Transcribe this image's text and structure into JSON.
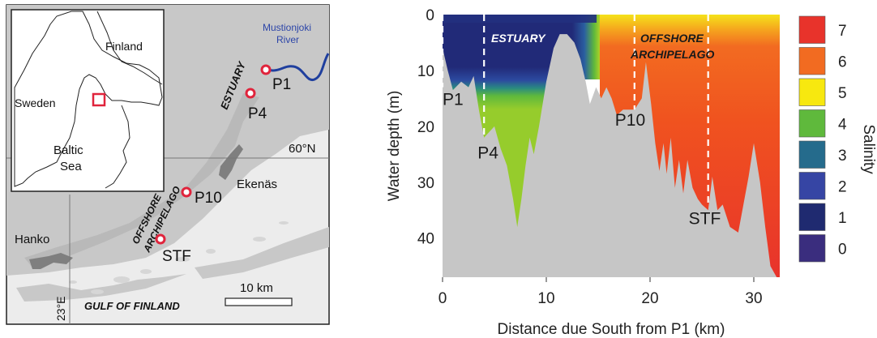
{
  "map": {
    "places": {
      "mustionjoki": "Mustionjoki",
      "river": "River",
      "estuary": "ESTUARY",
      "ekenas": "Ekenäs",
      "hanko": "Hanko",
      "offshore": "OFFSHORE",
      "archipelago": "ARCHIPELAGO",
      "gulf": "GULF OF  FINLAND"
    },
    "sites": [
      "P1",
      "P4",
      "P10",
      "STF"
    ],
    "lat_label": "60°N",
    "lon_label": "23°E",
    "scale_label": "10 km",
    "inset": {
      "finland": "Finland",
      "sweden": "Sweden",
      "baltic": "Baltic",
      "sea": "Sea"
    },
    "colors": {
      "land": "#c8c8c8",
      "water": "#ececec",
      "river": "#1f3f9e",
      "site": "#e0243c"
    }
  },
  "chart_data": {
    "type": "heatmap",
    "title": "",
    "xlabel": "Distance due South from P1 (km)",
    "ylabel": "Water depth (m)",
    "xlim": [
      0,
      32.5
    ],
    "ylim": [
      0,
      47
    ],
    "xticks": [
      "0",
      "10",
      "20",
      "30"
    ],
    "yticks": [
      "0",
      "10",
      "20",
      "30",
      "40"
    ],
    "zones": [
      "ESTUARY",
      "OFFSHORE",
      "ARCHIPELAGO"
    ],
    "zone_boundaries_km": [
      0,
      4,
      18.5,
      25.6
    ],
    "sites": [
      {
        "name": "P1",
        "x": 0,
        "depth": 13
      },
      {
        "name": "P4",
        "x": 4,
        "depth": 22
      },
      {
        "name": "P10",
        "x": 18.5,
        "depth": 17
      },
      {
        "name": "STF",
        "x": 25.6,
        "depth": 34
      }
    ],
    "bathymetry": [
      [
        0,
        6
      ],
      [
        0.5,
        10
      ],
      [
        1,
        13.5
      ],
      [
        1.8,
        12
      ],
      [
        2.5,
        13
      ],
      [
        3,
        11
      ],
      [
        3.5,
        17
      ],
      [
        4,
        22
      ],
      [
        5,
        20
      ],
      [
        5.6,
        24
      ],
      [
        6.2,
        27
      ],
      [
        6.8,
        33
      ],
      [
        7.2,
        38
      ],
      [
        7.6,
        33
      ],
      [
        8,
        27
      ],
      [
        8.4,
        22
      ],
      [
        8.8,
        25
      ],
      [
        9.3,
        20
      ],
      [
        10,
        12
      ],
      [
        10.7,
        6
      ],
      [
        11.3,
        3.5
      ],
      [
        12,
        3.5
      ],
      [
        12.7,
        5
      ],
      [
        13.3,
        8
      ],
      [
        13.8,
        12
      ],
      [
        14.2,
        16
      ],
      [
        14.8,
        13
      ],
      [
        15.3,
        15
      ],
      [
        15.8,
        13
      ],
      [
        16.3,
        15
      ],
      [
        16.8,
        18
      ],
      [
        17.4,
        17
      ],
      [
        18.5,
        17
      ],
      [
        19.2,
        15
      ],
      [
        19.6,
        8.5
      ],
      [
        20.1,
        16
      ],
      [
        20.5,
        23
      ],
      [
        20.9,
        28
      ],
      [
        21.3,
        23
      ],
      [
        21.6,
        28.5
      ],
      [
        22,
        22
      ],
      [
        22.4,
        31
      ],
      [
        22.8,
        26
      ],
      [
        23.2,
        32
      ],
      [
        23.6,
        26
      ],
      [
        24.1,
        31
      ],
      [
        24.6,
        33
      ],
      [
        25,
        34
      ],
      [
        25.6,
        35
      ],
      [
        26,
        29
      ],
      [
        26.5,
        35
      ],
      [
        27,
        34
      ],
      [
        27.7,
        38
      ],
      [
        28.5,
        39
      ],
      [
        29,
        34
      ],
      [
        29.5,
        29
      ],
      [
        30,
        23
      ],
      [
        30.6,
        30
      ],
      [
        31.1,
        38
      ],
      [
        31.6,
        45
      ],
      [
        32.2,
        47
      ]
    ],
    "salinity_legend": [
      "7",
      "6",
      "5",
      "4",
      "3",
      "2",
      "1",
      "0"
    ],
    "salinity_colors": [
      "#e8332b",
      "#f26b21",
      "#f7e80f",
      "#5fb93c",
      "#256b8c",
      "#3645a4",
      "#1f2a70",
      "#3a2d7e"
    ],
    "colorbar_label": "Salinity",
    "colors": {
      "seafloor": "#c6c6c6",
      "low": "#212a78",
      "mid": "#96cc2c",
      "high": "#f0531f"
    }
  }
}
